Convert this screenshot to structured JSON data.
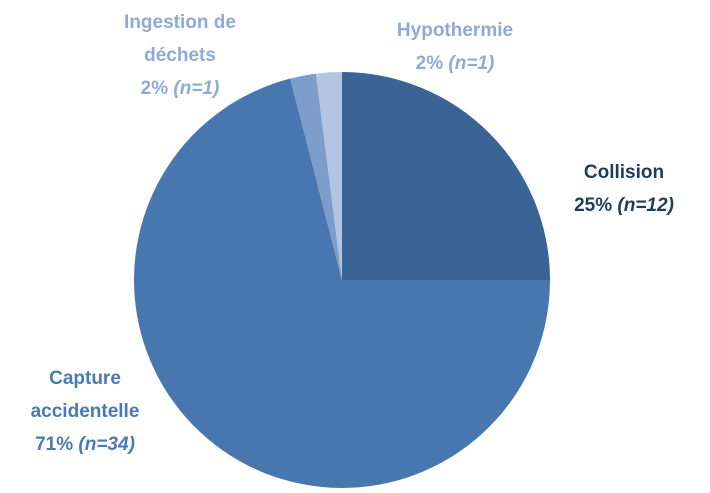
{
  "chart_data": {
    "type": "pie",
    "categories": [
      "Collision",
      "Capture accidentelle",
      "Ingestion de déchets",
      "Hypothermie"
    ],
    "values": [
      25,
      71,
      2,
      2
    ],
    "value_labels": [
      "25%",
      "71%",
      "2%",
      "2%"
    ],
    "count_labels": [
      "(n=12)",
      "(n=34)",
      "(n=1)",
      "(n=1)"
    ],
    "colors": [
      "#3b6496",
      "#4877b0",
      "#7d9dca",
      "#b3c5e2"
    ],
    "label_colors": [
      "#1f3b5c",
      "#4a7ab5",
      "#8eaad6",
      "#8eaad6"
    ]
  }
}
